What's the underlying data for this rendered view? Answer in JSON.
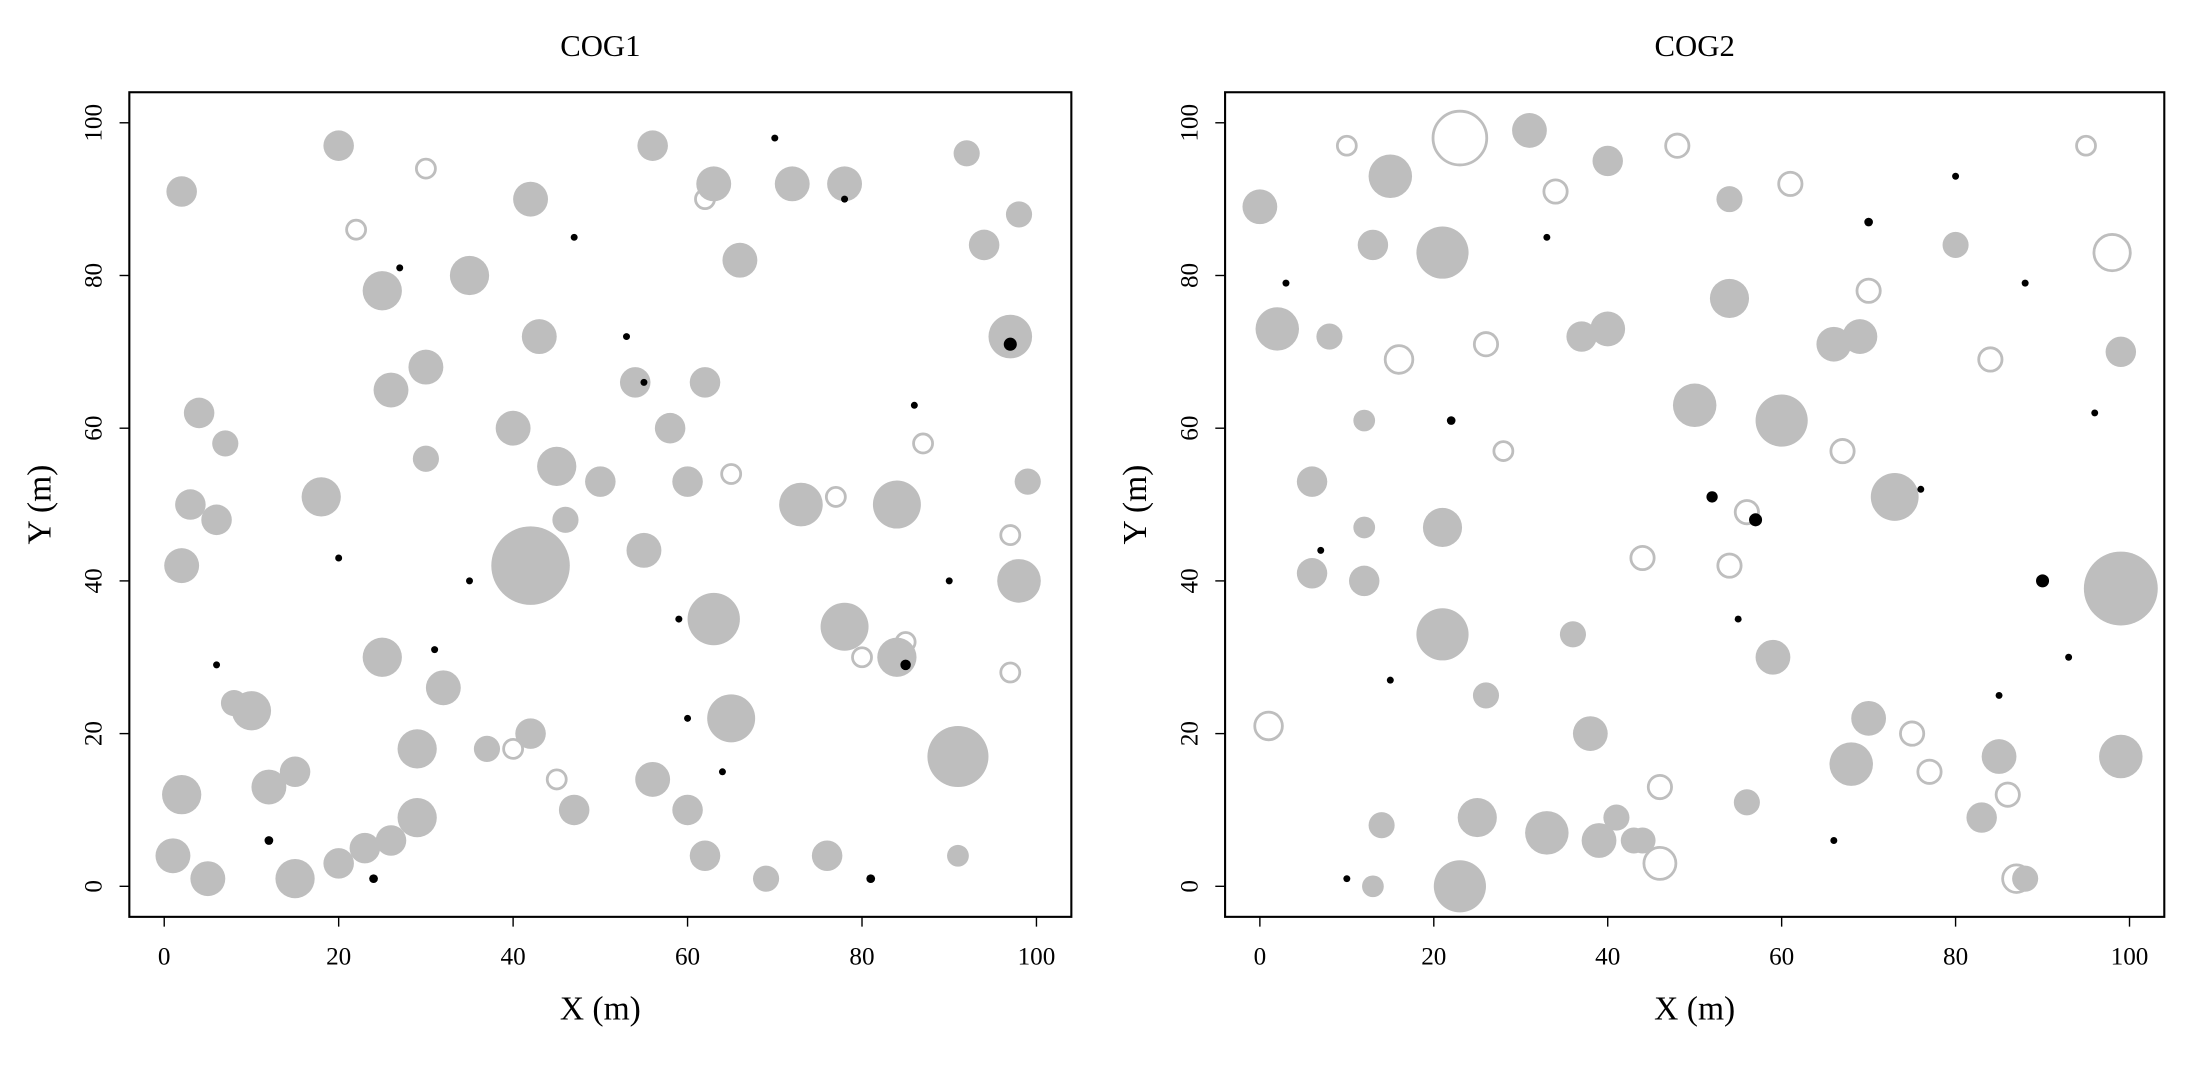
{
  "chart_data": [
    {
      "type": "scatter",
      "title": "COG1",
      "x_label": "X (m)",
      "y_label": "Y (m)",
      "xlim": [
        -4,
        104
      ],
      "ylim": [
        -4,
        104
      ],
      "xticks": [
        0,
        20,
        40,
        60,
        80,
        100
      ],
      "yticks": [
        0,
        20,
        40,
        60,
        80,
        100
      ],
      "series": [
        {
          "color": "#bebebe",
          "filled": true,
          "x": [
            42,
            63,
            73,
            78,
            84,
            91,
            98,
            97,
            65,
            25,
            29,
            18,
            7,
            4,
            2,
            2,
            2,
            5,
            15,
            12,
            10,
            1,
            29,
            32,
            40,
            43,
            30,
            25,
            20,
            42,
            56,
            63,
            72,
            78,
            66,
            62,
            55,
            50,
            45,
            35,
            26,
            60,
            62,
            69,
            76,
            56,
            47,
            42,
            37,
            92,
            94,
            98,
            99,
            91,
            54,
            60,
            58,
            46,
            30,
            84,
            6,
            3,
            20,
            23,
            26,
            15,
            8
          ],
          "y": [
            42,
            35,
            50,
            34,
            50,
            17,
            40,
            72,
            22,
            30,
            18,
            51,
            58,
            62,
            42,
            91,
            12,
            1,
            1,
            13,
            23,
            4,
            9,
            26,
            60,
            72,
            68,
            78,
            97,
            90,
            97,
            92,
            92,
            92,
            82,
            66,
            44,
            53,
            55,
            80,
            65,
            10,
            4,
            1,
            4,
            14,
            10,
            20,
            18,
            96,
            84,
            88,
            53,
            4,
            66,
            53,
            60,
            48,
            56,
            30,
            48,
            50,
            3,
            5,
            6,
            15,
            24
          ],
          "sizes": [
            9,
            6,
            5,
            5.5,
            5.5,
            7,
            5,
            5,
            5.5,
            4.5,
            4.5,
            4.5,
            3,
            3.5,
            4,
            3.5,
            4.5,
            4,
            4.5,
            4,
            4.5,
            4,
            4.5,
            4,
            4,
            4,
            4,
            4.5,
            3.5,
            4,
            3.5,
            4,
            4,
            4,
            4,
            3.5,
            4,
            3.5,
            4.5,
            4.5,
            4,
            3.5,
            3.5,
            3,
            3.5,
            4,
            3.5,
            3.5,
            3,
            3,
            3.5,
            3,
            3,
            2.5,
            3.5,
            3.5,
            3.5,
            3,
            3,
            4.5,
            3.5,
            3.5,
            3.5,
            3.5,
            3.5,
            3.5,
            3
          ]
        },
        {
          "color": "#bebebe",
          "filled": false,
          "x": [
            80,
            85,
            97,
            87,
            97,
            45,
            65,
            77,
            30,
            62,
            22,
            40
          ],
          "y": [
            30,
            32,
            28,
            58,
            46,
            14,
            54,
            51,
            94,
            90,
            86,
            18
          ],
          "sizes": [
            2.5,
            2.5,
            2.5,
            2.5,
            2.5,
            2.5,
            2.5,
            2.5,
            2.5,
            2.5,
            2.5,
            2.5
          ]
        },
        {
          "color": "#000000",
          "filled": true,
          "x": [
            97,
            85,
            20,
            12,
            55,
            24,
            35,
            81,
            86,
            70,
            31,
            47,
            78,
            53,
            59,
            6,
            27,
            60,
            64,
            90
          ],
          "y": [
            71,
            29,
            43,
            6,
            66,
            1,
            40,
            1,
            63,
            98,
            31,
            85,
            90,
            72,
            35,
            29,
            81,
            22,
            15,
            40
          ],
          "sizes": [
            1.5,
            1.2,
            0.8,
            1,
            0.8,
            1,
            0.8,
            1,
            0.8,
            0.8,
            0.8,
            0.8,
            0.8,
            0.8,
            0.8,
            0.8,
            0.8,
            0.8,
            0.8,
            0.8
          ]
        }
      ]
    },
    {
      "type": "scatter",
      "title": "COG2",
      "x_label": "X (m)",
      "y_label": "Y (m)",
      "xlim": [
        -4,
        104
      ],
      "ylim": [
        -4,
        104
      ],
      "xticks": [
        0,
        20,
        40,
        60,
        80,
        100
      ],
      "yticks": [
        0,
        20,
        40,
        60,
        80,
        100
      ],
      "series": [
        {
          "color": "#bebebe",
          "filled": true,
          "x": [
            23,
            99,
            99,
            73,
            60,
            59,
            54,
            50,
            38,
            21,
            21,
            31,
            40,
            15,
            0,
            2,
            6,
            6,
            8,
            13,
            21,
            12,
            25,
            33,
            39,
            44,
            56,
            54,
            66,
            69,
            68,
            70,
            83,
            88,
            85,
            80,
            99,
            37,
            40,
            36,
            26,
            14,
            13,
            12,
            12,
            41,
            43
          ],
          "y": [
            0,
            39,
            17,
            51,
            61,
            30,
            77,
            63,
            20,
            33,
            83,
            99,
            95,
            93,
            89,
            73,
            53,
            41,
            72,
            84,
            47,
            61,
            9,
            7,
            6,
            6,
            11,
            90,
            71,
            72,
            16,
            22,
            9,
            1,
            17,
            84,
            70,
            72,
            73,
            33,
            25,
            8,
            0,
            40,
            47,
            9,
            6
          ],
          "sizes": [
            6,
            8.5,
            5,
            5.5,
            6,
            4,
            4.5,
            5,
            4,
            6,
            6,
            4,
            3.5,
            5,
            4,
            5,
            3.5,
            3.5,
            3,
            3.5,
            4.5,
            2.5,
            4.5,
            5,
            4,
            3,
            3,
            3,
            4,
            4,
            5,
            4,
            3.5,
            3,
            4,
            3,
            3.5,
            3.5,
            4,
            3,
            3,
            3,
            2.5,
            3.5,
            2.5,
            3,
            3
          ]
        },
        {
          "color": "#bebebe",
          "filled": false,
          "x": [
            23,
            98,
            16,
            1,
            46,
            87,
            86,
            75,
            46,
            77,
            67,
            44,
            54,
            26,
            48,
            61,
            84,
            95,
            34,
            70,
            10,
            28,
            56
          ],
          "y": [
            98,
            83,
            69,
            21,
            3,
            1,
            12,
            20,
            13,
            15,
            57,
            43,
            42,
            71,
            97,
            92,
            69,
            97,
            91,
            78,
            97,
            57,
            49
          ],
          "sizes": [
            6.5,
            4.5,
            3.5,
            3.5,
            4,
            3.5,
            3,
            3,
            3,
            3,
            3,
            3,
            3,
            3,
            3,
            3,
            3,
            2.5,
            3,
            3,
            2.5,
            2.5,
            3
          ]
        },
        {
          "color": "#000000",
          "filled": true,
          "x": [
            57,
            90,
            52,
            22,
            70,
            7,
            10,
            80,
            96,
            88,
            3,
            33,
            55,
            66,
            85,
            76,
            93,
            15
          ],
          "y": [
            48,
            40,
            51,
            61,
            87,
            44,
            1,
            93,
            62,
            79,
            79,
            85,
            35,
            6,
            25,
            52,
            30,
            27
          ],
          "sizes": [
            1.5,
            1.5,
            1.3,
            1,
            1,
            0.8,
            0.8,
            0.8,
            0.8,
            0.8,
            0.8,
            0.8,
            0.8,
            0.8,
            0.8,
            0.8,
            0.8,
            0.8
          ]
        }
      ]
    }
  ]
}
